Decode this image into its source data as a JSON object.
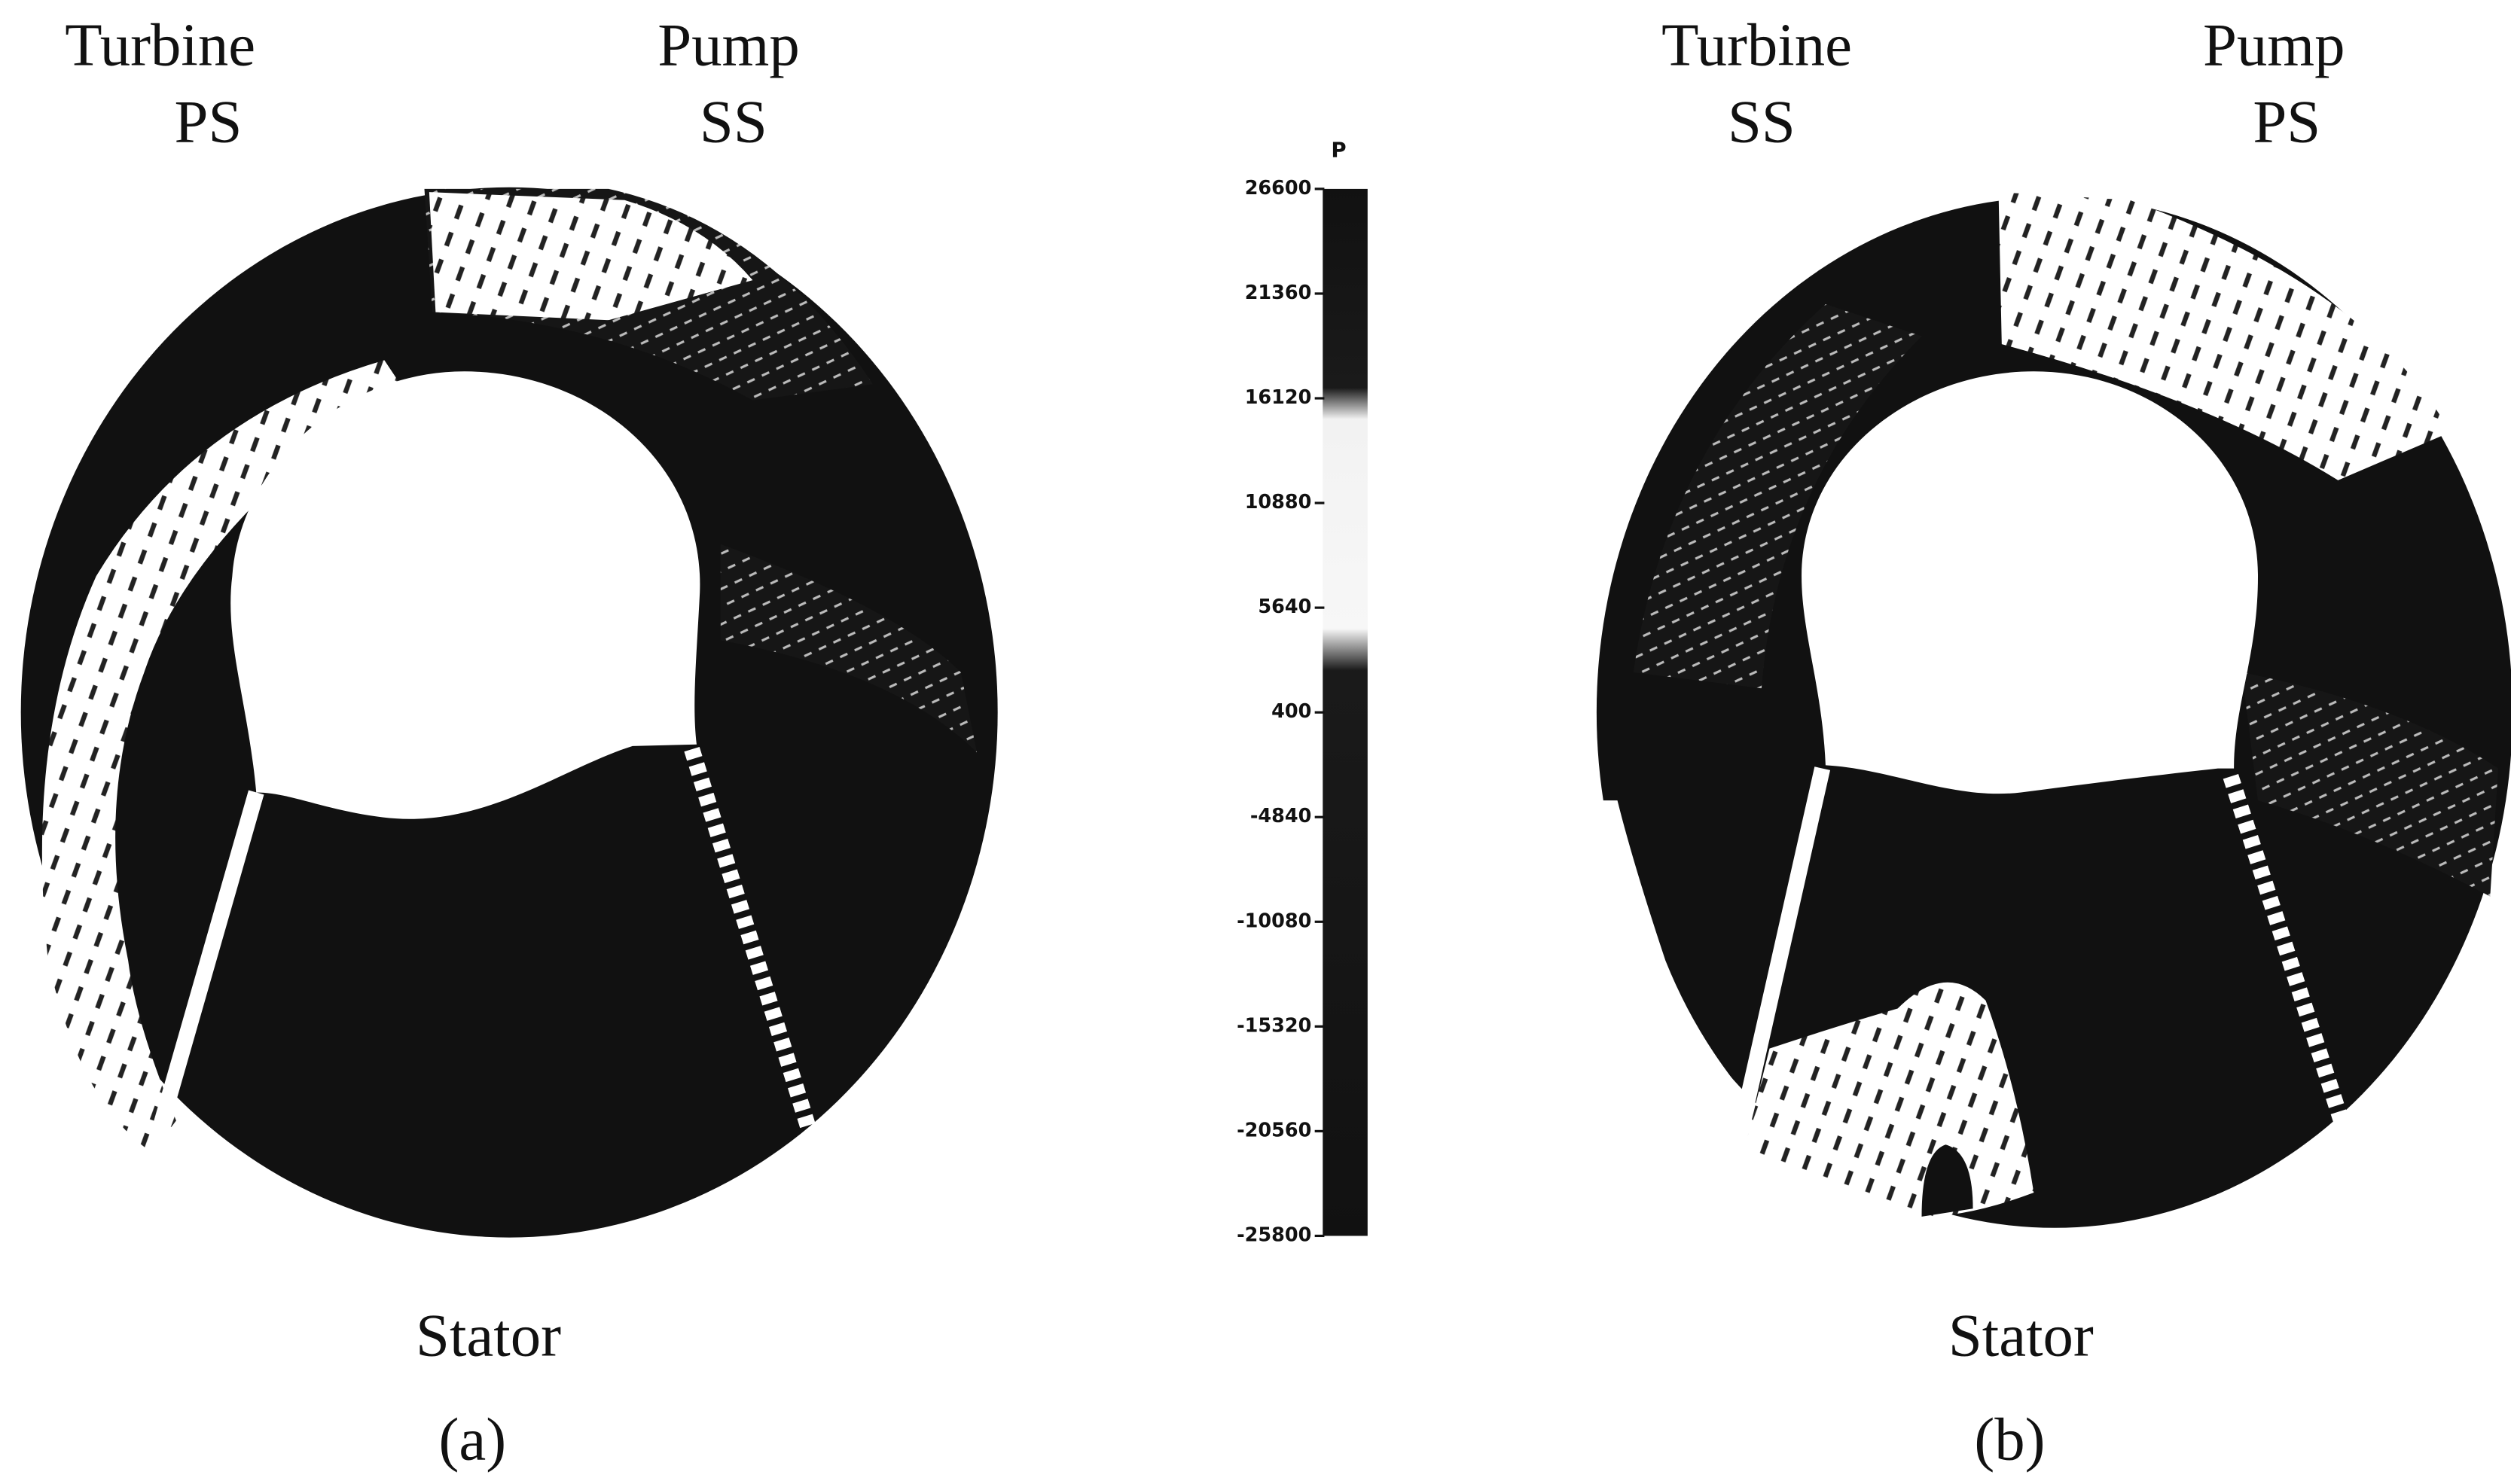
{
  "panels": [
    {
      "top_left": [
        "Turbine",
        "PS"
      ],
      "top_right": [
        "Pump",
        "SS"
      ],
      "bottom": "Stator",
      "caption": "(a)"
    },
    {
      "top_left": [
        "Turbine",
        "SS"
      ],
      "top_right": [
        "Pump",
        "PS"
      ],
      "bottom": "Stator",
      "caption": "(b)"
    }
  ],
  "colorbar": {
    "label": "P",
    "ticks": [
      26600,
      21360,
      16120,
      10880,
      5640,
      400,
      -4840,
      -10080,
      -15320,
      -20560,
      -25800
    ]
  }
}
